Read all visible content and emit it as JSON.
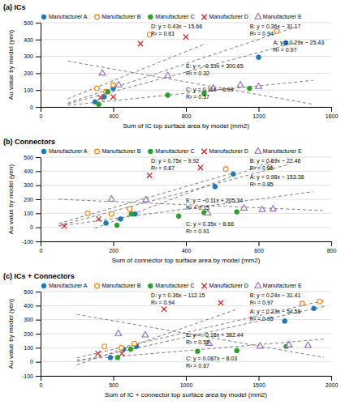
{
  "chart_data": [
    {
      "type": "scatter",
      "title": "(a) ICs",
      "x_label": "Sum of IC top surface area by model (mm2)",
      "y_label": "Au value by model (yen)",
      "xlim": [
        0,
        1600
      ],
      "xticks": [
        0,
        400,
        800,
        1200,
        1600
      ],
      "ylim": [
        0,
        500
      ],
      "yticks": [
        0,
        100,
        200,
        300,
        400,
        500
      ],
      "grid": "y",
      "legend": "top",
      "series": [
        {
          "name": "Manufacturer A",
          "marker": "circle",
          "x": [
            300,
            350,
            400,
            1200,
            1350
          ],
          "values": [
            30,
            60,
            110,
            295,
            380
          ]
        },
        {
          "name": "Manufacturer B",
          "marker": "circle-open",
          "x": [
            310,
            360,
            400,
            600,
            1300
          ],
          "values": [
            110,
            90,
            130,
            430,
            450
          ]
        },
        {
          "name": "Manufacturer C",
          "marker": "circle",
          "x": [
            320,
            370,
            700,
            900,
            1150
          ],
          "values": [
            15,
            90,
            70,
            80,
            110
          ]
        },
        {
          "name": "Manufacturer D",
          "marker": "x",
          "x": [
            330,
            400,
            550,
            800
          ],
          "values": [
            55,
            60,
            375,
            415
          ]
        },
        {
          "name": "Manufacturer E",
          "marker": "triangle-open",
          "x": [
            340,
            430,
            700,
            950,
            1100,
            1200
          ],
          "values": [
            200,
            130,
            185,
            110,
            130,
            120
          ]
        },
        {
          "type": "line",
          "line_style": "dashed",
          "color": "gray",
          "x": [
            150,
            1400
          ],
          "values": [
            18.07,
            380.57
          ]
        },
        {
          "type": "line",
          "line_style": "dashed",
          "color": "gray",
          "x": [
            150,
            1400
          ],
          "values": [
            22.83,
            472.83
          ]
        },
        {
          "type": "line",
          "line_style": "dashed",
          "color": "gray",
          "x": [
            150,
            1500
          ],
          "values": [
            9.51,
            158.01
          ]
        },
        {
          "type": "line",
          "line_style": "dashed",
          "color": "gray",
          "x": [
            150,
            900
          ],
          "values": [
            48.84,
            371.34
          ]
        },
        {
          "type": "line",
          "line_style": "dashed",
          "color": "gray",
          "x": [
            150,
            1500
          ],
          "values": [
            272.15,
            15.65
          ]
        }
      ],
      "annotations": [
        "D: y = 0.43x − 15.66\nR² = 0.61",
        "B: y = 0.36x − 31.17\nR² = 0.94",
        "A: y = 0.29x − 25.43\nR² = 0.97",
        "E: y = −0.19x + 300.65\nR² = 0.32",
        "C: y = 0.11x − 6.99\nR² = 0.57"
      ]
    },
    {
      "type": "scatter",
      "title": "(b) Connectors",
      "x_label": "Sum of connector top surface area by model (mm2)",
      "y_label": "Au value by model (yen)",
      "xlim": [
        0,
        800
      ],
      "xticks": [
        0,
        200,
        400,
        600,
        800
      ],
      "ylim": [
        -100,
        500
      ],
      "yticks": [
        -100,
        0,
        100,
        200,
        300,
        400,
        500
      ],
      "grid": "y",
      "legend": "top",
      "series": [
        {
          "name": "Manufacturer A",
          "marker": "circle",
          "x": [
            180,
            220,
            260,
            480,
            530
          ],
          "values": [
            30,
            60,
            95,
            290,
            380
          ]
        },
        {
          "name": "Manufacturer B",
          "marker": "circle-open",
          "x": [
            130,
            195,
            245,
            510,
            630
          ],
          "values": [
            100,
            95,
            130,
            415,
            430
          ]
        },
        {
          "name": "Manufacturer C",
          "marker": "circle",
          "x": [
            210,
            250,
            380,
            450,
            540
          ],
          "values": [
            15,
            95,
            80,
            105,
            110
          ]
        },
        {
          "name": "Manufacturer D",
          "marker": "x",
          "x": [
            65,
            160,
            300,
            440
          ],
          "values": [
            10,
            60,
            370,
            425
          ]
        },
        {
          "name": "Manufacturer E",
          "marker": "triangle-open",
          "x": [
            195,
            290,
            460,
            560,
            610,
            640
          ],
          "values": [
            200,
            195,
            100,
            135,
            125,
            130
          ]
        },
        {
          "type": "line",
          "line_style": "dashed",
          "color": "gray",
          "x": [
            150,
            650
          ],
          "values": [
            -6.38,
            483.62
          ]
        },
        {
          "type": "line",
          "line_style": "dashed",
          "color": "gray",
          "x": [
            50,
            680
          ],
          "values": [
            12.04,
            446.74
          ]
        },
        {
          "type": "line",
          "line_style": "dashed",
          "color": "gray",
          "x": [
            50,
            750
          ],
          "values": [
            8.84,
            253.84
          ]
        },
        {
          "type": "line",
          "line_style": "dashed",
          "color": "gray",
          "x": [
            50,
            520
          ],
          "values": [
            27.58,
            380.08
          ]
        },
        {
          "type": "line",
          "line_style": "dashed",
          "color": "gray",
          "x": [
            50,
            780
          ],
          "values": [
            199.84,
            119.54
          ]
        }
      ],
      "annotations": [
        "D: y = 0.75x − 9.92\nR² = 0.87",
        "B: y = 0.69x − 22.46\nR² = 0.96",
        "A: y = 0.98x − 153.38\nR² = 0.85",
        "E: y = −0.11x + 205.34\nR² = 0.15",
        "C: y = 0.35x − 8.66\nR² = 0.91"
      ]
    },
    {
      "type": "scatter",
      "title": "(c) ICs + Connectors",
      "x_label": "Sum of IC + connector top surface area by model (mm2)",
      "y_label": "Au value by model (yen)",
      "xlim": [
        0,
        2000
      ],
      "xticks": [
        0,
        500,
        1000,
        1500,
        2000
      ],
      "ylim": [
        -100,
        500
      ],
      "yticks": [
        -100,
        0,
        100,
        200,
        300,
        400,
        500
      ],
      "grid": "y",
      "legend": "top",
      "series": [
        {
          "name": "Manufacturer A",
          "marker": "circle",
          "x": [
            480,
            570,
            660,
            1680,
            1880
          ],
          "values": [
            30,
            90,
            110,
            290,
            380
          ]
        },
        {
          "name": "Manufacturer B",
          "marker": "circle-open",
          "x": [
            440,
            555,
            645,
            1800,
            1920
          ],
          "values": [
            110,
            100,
            130,
            415,
            430
          ]
        },
        {
          "name": "Manufacturer C",
          "marker": "circle",
          "x": [
            530,
            620,
            1080,
            1350,
            1690
          ],
          "values": [
            30,
            90,
            75,
            80,
            110
          ]
        },
        {
          "name": "Manufacturer D",
          "marker": "x",
          "x": [
            395,
            560,
            850,
            1240
          ],
          "values": [
            60,
            60,
            375,
            420
          ]
        },
        {
          "name": "Manufacturer E",
          "marker": "triangle-open",
          "x": [
            535,
            720,
            1160,
            1510,
            1710,
            1840
          ],
          "values": [
            200,
            190,
            130,
            110,
            120,
            115
          ]
        },
        {
          "type": "line",
          "line_style": "dashed",
          "color": "gray",
          "x": [
            250,
            1950
          ],
          "values": [
            2.92,
            393.92
          ]
        },
        {
          "type": "line",
          "line_style": "dashed",
          "color": "gray",
          "x": [
            250,
            1950
          ],
          "values": [
            28.59,
            436.59
          ]
        },
        {
          "type": "line",
          "line_style": "dashed",
          "color": "gray",
          "x": [
            250,
            1950
          ],
          "values": [
            13.72,
            161.62
          ]
        },
        {
          "type": "line",
          "line_style": "dashed",
          "color": "gray",
          "x": [
            250,
            1350
          ],
          "values": [
            -22.15,
            373.85
          ]
        },
        {
          "type": "line",
          "line_style": "dashed",
          "color": "gray",
          "x": [
            250,
            1950
          ],
          "values": [
            337.44,
            31.44
          ]
        }
      ],
      "annotations": [
        "D: y = 0.36x − 112.15\nR² = 0.94",
        "B: y = 0.24x − 31.41\nR² = 0.97",
        "A: y = 0.23x − 54.58\nR² = 0.95",
        "E: y = −0.18x + 382.44\nR² = 0.55",
        "C: y = 0.087x − 8.03\nR² = 0.67"
      ]
    }
  ]
}
